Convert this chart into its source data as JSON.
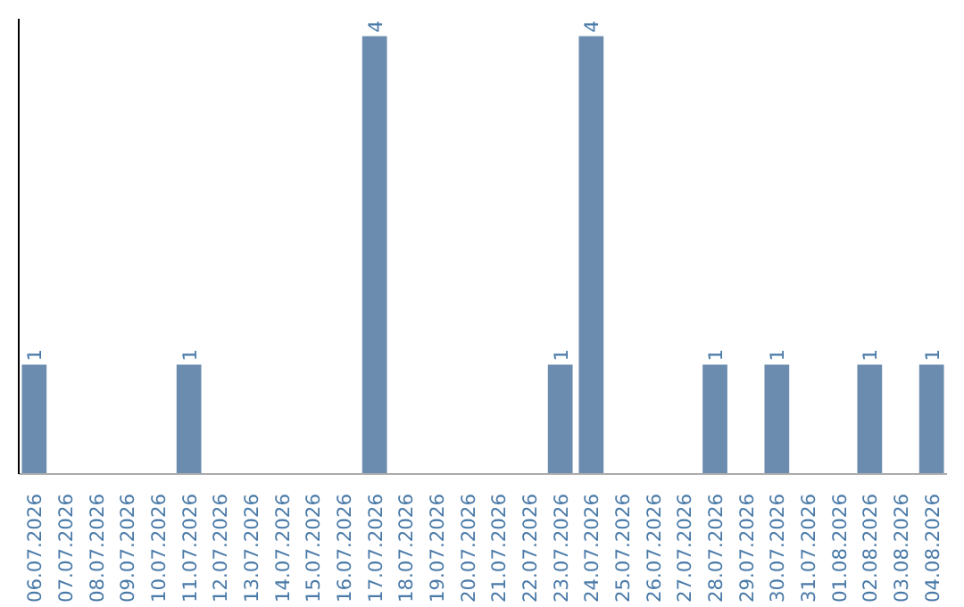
{
  "chart_data": {
    "type": "bar",
    "categories": [
      "06.07.2026",
      "07.07.2026",
      "08.07.2026",
      "09.07.2026",
      "10.07.2026",
      "11.07.2026",
      "12.07.2026",
      "13.07.2026",
      "14.07.2026",
      "15.07.2026",
      "16.07.2026",
      "17.07.2026",
      "18.07.2026",
      "19.07.2026",
      "20.07.2026",
      "21.07.2026",
      "22.07.2026",
      "23.07.2026",
      "24.07.2026",
      "25.07.2026",
      "26.07.2026",
      "27.07.2026",
      "28.07.2026",
      "29.07.2026",
      "30.07.2026",
      "31.07.2026",
      "01.08.2026",
      "02.08.2026",
      "03.08.2026",
      "04.08.2026"
    ],
    "values": [
      1,
      0,
      0,
      0,
      0,
      1,
      0,
      0,
      0,
      0,
      0,
      4,
      0,
      0,
      0,
      0,
      0,
      1,
      4,
      0,
      0,
      0,
      1,
      0,
      1,
      0,
      0,
      1,
      0,
      1
    ],
    "value_labels": [
      "1",
      null,
      null,
      null,
      null,
      "1",
      null,
      null,
      null,
      null,
      null,
      "4",
      null,
      null,
      null,
      null,
      null,
      "1",
      "4",
      null,
      null,
      null,
      "1",
      null,
      "1",
      null,
      null,
      "1",
      null,
      "1"
    ],
    "color": "#6b8cae",
    "grid": false,
    "tick_labels": "x"
  }
}
